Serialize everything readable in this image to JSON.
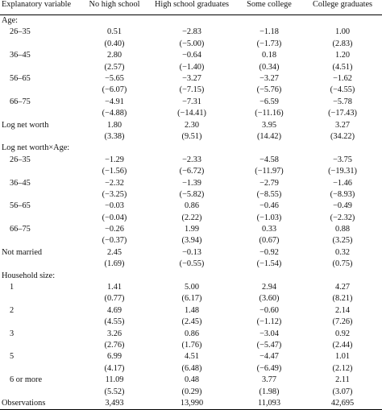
{
  "headers": [
    "Explanatory variable",
    "No high school",
    "High school graduates",
    "Some college",
    "College graduates"
  ],
  "rows": [
    [
      "Age:",
      "",
      "",
      "",
      ""
    ],
    [
      "26–35",
      "0.51",
      "−2.83",
      "−1.18",
      "1.00"
    ],
    [
      "",
      "(0.40)",
      "(−5.00)",
      "(−1.73)",
      "(2.83)"
    ],
    [
      "36–45",
      "2.80",
      "−0.64",
      "0.18",
      "1.20"
    ],
    [
      "",
      "(2.57)",
      "(−1.40)",
      "(0.34)",
      "(4.51)"
    ],
    [
      "56–65",
      "−5.65",
      "−3.27",
      "−3.27",
      "−1.62"
    ],
    [
      "",
      "(−6.07)",
      "(−7.15)",
      "(−5.76)",
      "(−4.55)"
    ],
    [
      "66–75",
      "−4.91",
      "−7.31",
      "−6.59",
      "−5.78"
    ],
    [
      "",
      "(−4.88)",
      "(−14.41)",
      "(−11.16)",
      "(−17.43)"
    ],
    [
      "Log net worth",
      "1.80",
      "2.30",
      "3.95",
      "3.27"
    ],
    [
      "",
      "(3.38)",
      "(9.51)",
      "(14.42)",
      "(34.22)"
    ],
    [
      "Log net worth×Age:",
      "",
      "",
      "",
      ""
    ],
    [
      "26–35",
      "−1.29",
      "−2.33",
      "−4.58",
      "−3.75"
    ],
    [
      "",
      "(−1.56)",
      "(−6.72)",
      "(−11.97)",
      "(−19.31)"
    ],
    [
      "36–45",
      "−2.32",
      "−1.39",
      "−2.79",
      "−1.46"
    ],
    [
      "",
      "(−3.25)",
      "(−5.82)",
      "(−8.55)",
      "(−8.93)"
    ],
    [
      "56–65",
      "−0.03",
      "0.86",
      "−0.46",
      "−0.49"
    ],
    [
      "",
      "(−0.04)",
      "(2.22)",
      "(−1.03)",
      "(−2.32)"
    ],
    [
      "66–75",
      "−0.26",
      "1.99",
      "0.33",
      "0.88"
    ],
    [
      "",
      "(−0.37)",
      "(3.94)",
      "(0.67)",
      "(3.25)"
    ],
    [
      "Not married",
      "2.45",
      "−0.13",
      "−0.92",
      "0.32"
    ],
    [
      "",
      "(1.69)",
      "(−0.55)",
      "(−1.54)",
      "(0.75)"
    ],
    [
      "Household size:",
      "",
      "",
      "",
      ""
    ],
    [
      "1",
      "1.41",
      "5.00",
      "2.94",
      "4.27"
    ],
    [
      "",
      "(0.77)",
      "(6.17)",
      "(3.60)",
      "(8.21)"
    ],
    [
      "2",
      "4.69",
      "1.48",
      "−0.60",
      "2.14"
    ],
    [
      "",
      "(4.55)",
      "(2.45)",
      "(−1.12)",
      "(7.26)"
    ],
    [
      "3",
      "3.26",
      "0.86",
      "−3.04",
      "0.92"
    ],
    [
      "",
      "(2.76)",
      "(1.76)",
      "(−5.47)",
      "(2.44)"
    ],
    [
      "5",
      "6.99",
      "4.51",
      "−4.47",
      "1.01"
    ],
    [
      "",
      "(4.17)",
      "(6.48)",
      "(−6.49)",
      "(2.12)"
    ],
    [
      "6 or more",
      "11.09",
      "0.48",
      "3.77",
      "2.11"
    ],
    [
      "",
      "(5.52)",
      "(0.29)",
      "(1.98)",
      "(3.07)"
    ],
    [
      "Observations",
      "3,493",
      "13,990",
      "11,093",
      "42,695"
    ]
  ]
}
